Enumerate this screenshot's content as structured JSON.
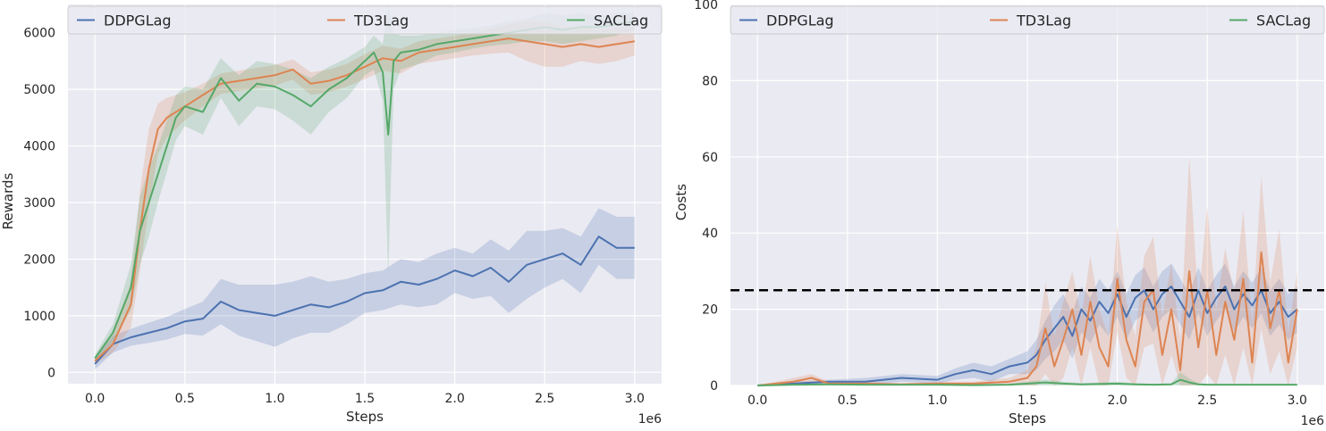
{
  "colors": {
    "DDPGLag": "#4c72b0",
    "TD3Lag": "#dd8452",
    "SACLag": "#55a868",
    "background": "#eaeaf2",
    "grid": "#ffffff",
    "threshold": "#000000"
  },
  "chart_data": [
    {
      "type": "line",
      "xlabel": "Steps",
      "ylabel": "Rewards",
      "x_offset_label": "1e6",
      "xlim": [
        -0.15,
        3.15
      ],
      "ylim": [
        -200,
        6500
      ],
      "xticks": [
        0.0,
        0.5,
        1.0,
        1.5,
        2.0,
        2.5,
        3.0
      ],
      "xtick_labels": [
        "0.0",
        "0.5",
        "1.0",
        "1.5",
        "2.0",
        "2.5",
        "3.0"
      ],
      "yticks": [
        0,
        1000,
        2000,
        3000,
        4000,
        5000,
        6000
      ],
      "ytick_labels": [
        "0",
        "1000",
        "2000",
        "3000",
        "4000",
        "5000",
        "6000"
      ],
      "grid": true,
      "legend": "top, spanning full width, 3 columns",
      "series": [
        {
          "name": "DDPGLag",
          "x": [
            0.0,
            0.1,
            0.2,
            0.3,
            0.4,
            0.5,
            0.6,
            0.7,
            0.8,
            0.9,
            1.0,
            1.1,
            1.2,
            1.3,
            1.4,
            1.5,
            1.6,
            1.7,
            1.8,
            1.9,
            2.0,
            2.1,
            2.2,
            2.3,
            2.4,
            2.5,
            2.6,
            2.7,
            2.8,
            2.9,
            3.0
          ],
          "y": [
            150,
            500,
            620,
            700,
            780,
            900,
            950,
            1250,
            1100,
            1050,
            1000,
            1100,
            1200,
            1150,
            1250,
            1400,
            1450,
            1600,
            1550,
            1650,
            1800,
            1700,
            1850,
            1600,
            1900,
            2000,
            2100,
            1900,
            2400,
            2200,
            2200
          ],
          "band": [
            100,
            150,
            150,
            180,
            200,
            220,
            300,
            400,
            450,
            500,
            550,
            500,
            500,
            450,
            400,
            350,
            350,
            400,
            400,
            450,
            400,
            400,
            500,
            550,
            600,
            500,
            450,
            500,
            500,
            550,
            550
          ]
        },
        {
          "name": "TD3Lag",
          "x": [
            0.0,
            0.1,
            0.2,
            0.25,
            0.3,
            0.35,
            0.4,
            0.5,
            0.6,
            0.7,
            0.8,
            0.9,
            1.0,
            1.1,
            1.2,
            1.3,
            1.4,
            1.5,
            1.6,
            1.7,
            1.8,
            1.9,
            2.0,
            2.1,
            2.2,
            2.3,
            2.4,
            2.5,
            2.6,
            2.7,
            2.8,
            2.9,
            3.0
          ],
          "y": [
            200,
            500,
            1200,
            2500,
            3600,
            4300,
            4500,
            4700,
            4900,
            5100,
            5150,
            5200,
            5250,
            5350,
            5100,
            5150,
            5250,
            5400,
            5550,
            5500,
            5650,
            5700,
            5750,
            5800,
            5850,
            5900,
            5850,
            5800,
            5750,
            5800,
            5750,
            5800,
            5850
          ],
          "band": [
            50,
            150,
            400,
            700,
            700,
            450,
            350,
            250,
            200,
            180,
            180,
            180,
            180,
            180,
            200,
            200,
            200,
            220,
            220,
            220,
            200,
            200,
            200,
            200,
            220,
            250,
            350,
            400,
            350,
            300,
            300,
            300,
            250
          ]
        },
        {
          "name": "SACLag",
          "x": [
            0.0,
            0.1,
            0.2,
            0.25,
            0.3,
            0.35,
            0.4,
            0.45,
            0.5,
            0.6,
            0.7,
            0.8,
            0.9,
            1.0,
            1.1,
            1.2,
            1.3,
            1.4,
            1.5,
            1.55,
            1.6,
            1.63,
            1.66,
            1.7,
            1.8,
            1.9,
            2.0,
            2.1,
            2.2,
            2.3,
            2.4,
            2.5,
            2.6,
            2.7,
            2.8,
            2.9,
            3.0
          ],
          "y": [
            250,
            700,
            1500,
            2500,
            3000,
            3500,
            4000,
            4500,
            4700,
            4600,
            5200,
            4800,
            5100,
            5050,
            4900,
            4700,
            5000,
            5200,
            5500,
            5650,
            5300,
            4200,
            5500,
            5650,
            5700,
            5800,
            5850,
            5900,
            5950,
            6000,
            6050,
            6100,
            6050,
            6100,
            6100,
            6150,
            6200
          ],
          "band": [
            60,
            150,
            400,
            600,
            600,
            500,
            450,
            400,
            350,
            400,
            350,
            450,
            400,
            400,
            450,
            500,
            400,
            350,
            250,
            300,
            500,
            2500,
            500,
            300,
            250,
            200,
            200,
            180,
            180,
            200,
            200,
            250,
            250,
            250,
            200,
            200,
            150
          ]
        }
      ]
    },
    {
      "type": "line",
      "xlabel": "Steps",
      "ylabel": "Costs",
      "x_offset_label": "1e6",
      "xlim": [
        -0.15,
        3.15
      ],
      "ylim": [
        0,
        100
      ],
      "xticks": [
        0.0,
        0.5,
        1.0,
        1.5,
        2.0,
        2.5,
        3.0
      ],
      "xtick_labels": [
        "0.0",
        "0.5",
        "1.0",
        "1.5",
        "2.0",
        "2.5",
        "3.0"
      ],
      "yticks": [
        0,
        20,
        40,
        60,
        80,
        100
      ],
      "ytick_labels": [
        "0",
        "20",
        "40",
        "60",
        "80",
        "100"
      ],
      "grid": true,
      "legend": "top, spanning full width, 3 columns",
      "threshold": 25,
      "series": [
        {
          "name": "DDPGLag",
          "x": [
            0.0,
            0.2,
            0.4,
            0.6,
            0.8,
            1.0,
            1.1,
            1.2,
            1.3,
            1.4,
            1.5,
            1.55,
            1.6,
            1.65,
            1.7,
            1.75,
            1.8,
            1.85,
            1.9,
            1.95,
            2.0,
            2.05,
            2.1,
            2.15,
            2.2,
            2.25,
            2.3,
            2.35,
            2.4,
            2.45,
            2.5,
            2.55,
            2.6,
            2.65,
            2.7,
            2.75,
            2.8,
            2.85,
            2.9,
            2.95,
            3.0
          ],
          "y": [
            0,
            0.5,
            1,
            1,
            2,
            1.5,
            3,
            4,
            3,
            5,
            6,
            8,
            12,
            15,
            18,
            13,
            20,
            17,
            22,
            19,
            24,
            18,
            23,
            25,
            20,
            24,
            26,
            22,
            18,
            25,
            19,
            23,
            26,
            20,
            24,
            21,
            25,
            19,
            22,
            18,
            20
          ],
          "band": [
            0,
            0.5,
            0.5,
            1,
            1,
            1,
            1.5,
            2,
            2,
            2,
            3,
            4,
            5,
            6,
            6,
            6,
            6,
            6,
            6,
            6,
            6,
            6,
            6,
            6,
            6,
            6,
            6,
            6,
            6,
            6,
            6,
            6,
            6,
            6,
            6,
            6,
            6,
            6,
            6,
            6,
            6
          ]
        },
        {
          "name": "TD3Lag",
          "x": [
            0.0,
            0.1,
            0.2,
            0.3,
            0.4,
            0.6,
            0.8,
            1.0,
            1.2,
            1.4,
            1.5,
            1.55,
            1.6,
            1.65,
            1.7,
            1.75,
            1.8,
            1.85,
            1.9,
            1.95,
            2.0,
            2.05,
            2.1,
            2.15,
            2.2,
            2.25,
            2.3,
            2.35,
            2.4,
            2.45,
            2.5,
            2.55,
            2.6,
            2.65,
            2.7,
            2.75,
            2.8,
            2.85,
            2.9,
            2.95,
            3.0
          ],
          "y": [
            0,
            0.5,
            1,
            2,
            0.5,
            0.5,
            0.3,
            0.5,
            0.5,
            1,
            2,
            5,
            15,
            5,
            12,
            20,
            8,
            22,
            10,
            5,
            28,
            12,
            5,
            22,
            25,
            8,
            20,
            4,
            30,
            10,
            25,
            8,
            22,
            12,
            28,
            6,
            35,
            15,
            25,
            6,
            20
          ],
          "band": [
            0,
            0.5,
            1,
            1,
            0.5,
            0.5,
            0.3,
            0.5,
            0.5,
            1,
            2,
            5,
            12,
            8,
            10,
            10,
            10,
            12,
            10,
            8,
            14,
            10,
            8,
            12,
            14,
            10,
            12,
            8,
            30,
            12,
            22,
            12,
            14,
            12,
            18,
            10,
            20,
            12,
            16,
            8,
            10
          ]
        },
        {
          "name": "SACLag",
          "x": [
            0.0,
            0.2,
            0.4,
            0.6,
            0.8,
            1.0,
            1.2,
            1.4,
            1.6,
            1.7,
            1.8,
            2.0,
            2.1,
            2.2,
            2.3,
            2.35,
            2.4,
            2.45,
            2.5,
            2.6,
            2.8,
            3.0
          ],
          "y": [
            0,
            0.2,
            0.3,
            0.2,
            0.2,
            0.2,
            0.1,
            0.2,
            0.8,
            0.5,
            0.3,
            0.5,
            0.3,
            0.2,
            0.3,
            1.5,
            0.8,
            0.3,
            0.2,
            0.2,
            0.2,
            0.2
          ],
          "band": [
            0,
            0.2,
            0.3,
            0.2,
            0.2,
            0.2,
            0.1,
            0.2,
            0.8,
            0.5,
            0.3,
            0.5,
            0.3,
            0.2,
            0.3,
            2,
            1,
            0.3,
            0.2,
            0.2,
            0.2,
            0.2
          ]
        }
      ]
    }
  ]
}
